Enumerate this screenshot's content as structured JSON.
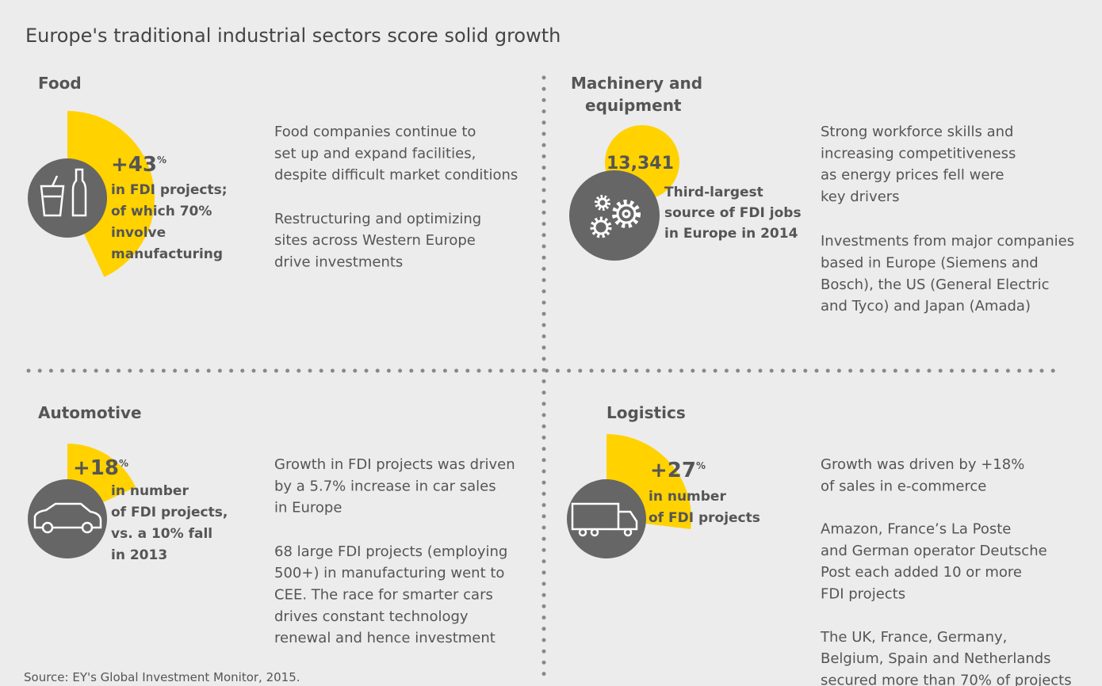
{
  "title": "Europe's traditional industrial sectors score solid growth",
  "source": "Source: EY's Global Investment Monitor, 2015.",
  "sectors": [
    {
      "name": [
        "Food"
      ],
      "stat": "+43",
      "stat_unit": "%",
      "highlight": [
        "in FDI projects;",
        "of which 70%",
        "involve",
        "manufacturing"
      ],
      "paragraphs": [
        [
          "Food companies continue to",
          "set up and expand facilities,",
          "despite difficult market conditions"
        ],
        [
          "Restructuring and optimizing",
          "sites across Western Europe",
          "drive investments"
        ]
      ]
    },
    {
      "name": [
        "Machinery and",
        "equipment"
      ],
      "stat": "13,341",
      "highlight": [
        "Third-largest",
        "source of FDI jobs",
        "in Europe in 2014"
      ],
      "paragraphs": [
        [
          "Strong workforce skills and",
          "increasing competitiveness",
          "as energy prices fell were",
          "key drivers"
        ],
        [
          "Investments from major companies",
          "based in Europe (Siemens and",
          "Bosch), the US (General Electric",
          "and Tyco) and Japan (Amada)"
        ]
      ]
    },
    {
      "name": [
        "Automotive"
      ],
      "stat": "+18",
      "stat_unit": "%",
      "highlight": [
        "in number",
        "of FDI projects,",
        "vs. a 10% fall",
        "in 2013"
      ],
      "paragraphs": [
        [
          "Growth in FDI projects was driven",
          "by a 5.7% increase in car sales",
          "in Europe"
        ],
        [
          "68 large FDI projects (employing",
          "500+) in manufacturing went to",
          "CEE. The race for smarter cars",
          "drives constant technology",
          "renewal and hence investment"
        ]
      ]
    },
    {
      "name": [
        "Logistics"
      ],
      "stat": "+27",
      "stat_unit": "%",
      "highlight": [
        "in number",
        "of FDI projects"
      ],
      "paragraphs": [
        [
          "Growth was driven by +18%",
          "of sales in e-commerce"
        ],
        [
          "Amazon, France’s La Poste",
          "and German operator Deutsche",
          "Post each added 10 or more",
          "FDI projects"
        ],
        [
          "The UK, France, Germany,",
          "Belgium, Spain and Netherlands",
          "secured more than 70% of projects"
        ]
      ]
    }
  ]
}
